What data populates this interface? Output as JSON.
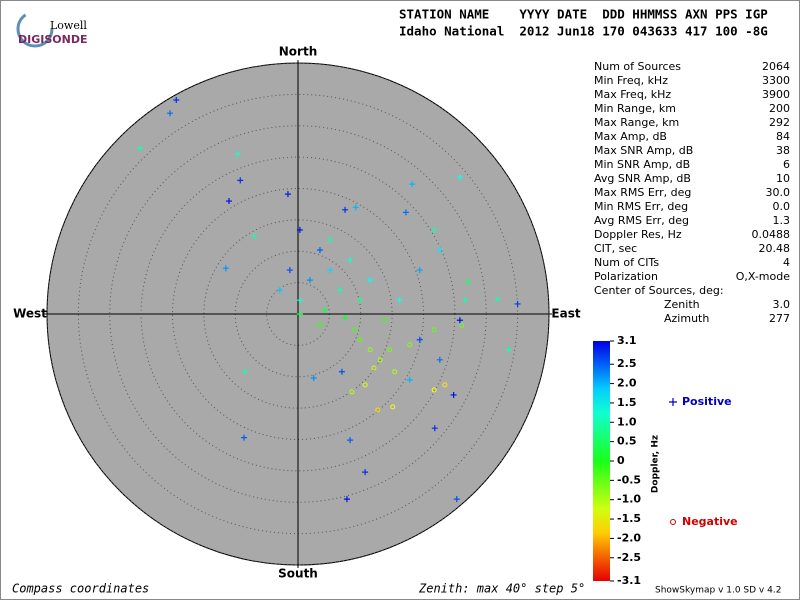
{
  "logo": {
    "top": "Lowell",
    "bottom": "DIGISONDE"
  },
  "header": {
    "line1": "STATION NAME    YYYY DATE  DDD HHMMSS AXN PPS IGP",
    "line2": "Idaho National  2012 Jun18 170 043633 417 100 -8G"
  },
  "info": {
    "rows": [
      [
        "Num of Sources",
        "2064"
      ],
      [
        "Min Freq, kHz",
        "3300"
      ],
      [
        "Max Freq, kHz",
        "3900"
      ],
      [
        "Min Range, km",
        "200"
      ],
      [
        "Max Range, km",
        "292"
      ],
      [
        "Max Amp, dB",
        "84"
      ],
      [
        "Max SNR Amp, dB",
        "38"
      ],
      [
        "Min SNR Amp, dB",
        "6"
      ],
      [
        "Avg SNR Amp, dB",
        "10"
      ],
      [
        "Max RMS Err, deg",
        "30.0"
      ],
      [
        "Min RMS Err, deg",
        "0.0"
      ],
      [
        "Avg RMS Err, deg",
        "1.3"
      ],
      [
        "Doppler Res, Hz",
        "0.0488"
      ],
      [
        "CIT, sec",
        "20.48"
      ],
      [
        "Num of CITs",
        "4"
      ],
      [
        "Polarization",
        "O,X-mode"
      ]
    ],
    "center_title": "Center of Sources, deg:",
    "center_rows": [
      [
        "Zenith",
        "3.0"
      ],
      [
        "Azimuth",
        "277"
      ]
    ]
  },
  "footer": {
    "left": "Compass coordinates",
    "middle": "Zenith: max 40°  step 5°",
    "right": "ShowSkymap v 1.0  SD v 4.2"
  },
  "chart_data": {
    "type": "skymap",
    "directions": {
      "north": "North",
      "south": "South",
      "east": "East",
      "west": "West"
    },
    "rlim": [
      0,
      40
    ],
    "rticks": [
      5,
      10,
      15,
      20,
      25,
      30,
      35,
      40
    ],
    "colorbar_label": "Doppler, Hz",
    "clim": [
      -3.1,
      3.1
    ],
    "cticks": [
      3.1,
      2.5,
      {
        "value": 2,
        "label": "2.0"
      },
      1.5,
      {
        "value": 1,
        "label": "1.0"
      },
      0.5,
      0,
      -0.5,
      {
        "value": -1,
        "label": "-1.0"
      },
      -1.5,
      {
        "value": -2,
        "label": "-2.0"
      },
      -2.5,
      -3.1
    ],
    "series": [
      {
        "name": "Positive",
        "marker": "+",
        "color": "#0000c0",
        "x": [
          -19.4,
          -20.4,
          -25.2,
          -9.6,
          -9.2,
          -11.0,
          -1.6,
          18.2,
          25.8,
          17.2,
          7.5,
          9.2,
          -7.0,
          -11.5,
          0.3,
          3.5,
          5.1,
          8.3,
          11.5,
          1.9,
          -1.3,
          -2.9,
          6.7,
          9.9,
          16.2,
          19.4,
          22.6,
          26.6,
          31.8,
          35.0,
          25.8,
          19.4,
          22.6,
          17.8,
          -8.4,
          -8.6,
          8.3,
          10.7,
          7.8,
          25.3,
          21.8,
          24.8,
          7.0,
          2.5,
          33.6,
          0.3,
          21.7,
          27.1,
          5.1,
          0.3,
          4.3,
          7.5
        ],
        "y": [
          34.1,
          32.0,
          26.4,
          25.5,
          21.3,
          18.0,
          19.1,
          20.7,
          21.8,
          16.2,
          16.6,
          17.0,
          12.4,
          7.3,
          13.4,
          10.2,
          7.0,
          8.6,
          5.4,
          5.4,
          7.0,
          3.8,
          3.8,
          2.2,
          2.2,
          7.0,
          10.2,
          2.2,
          2.4,
          1.6,
          -1.0,
          -4.1,
          -7.3,
          -10.5,
          -9.2,
          -19.7,
          -20.1,
          -25.2,
          -29.5,
          -29.5,
          -18.2,
          -12.9,
          -9.2,
          -10.2,
          -5.7,
          0,
          13.4,
          5.1,
          11.8,
          2.2,
          0.6,
          -0.6
        ],
        "values": [
          2.8,
          2.4,
          1.0,
          1.2,
          2.8,
          3.0,
          2.9,
          2.0,
          1.5,
          2.4,
          2.8,
          2.0,
          1.0,
          2.2,
          3.0,
          2.5,
          1.8,
          1.2,
          1.6,
          2.2,
          2.6,
          1.9,
          1.0,
          0.8,
          1.4,
          2.1,
          1.7,
          1.0,
          1.1,
          2.7,
          3.0,
          2.6,
          2.4,
          2.0,
          1.0,
          2.5,
          2.5,
          2.8,
          3.0,
          2.6,
          2.8,
          3.0,
          2.6,
          2.2,
          1.0,
          0.2,
          1.0,
          0.6,
          0.9,
          1.3,
          0.3,
          0.1
        ]
      },
      {
        "name": "Negative",
        "marker": "o",
        "color": "#d00000",
        "x": [
          13.1,
          11.5,
          14.6,
          12.1,
          15.4,
          9.9,
          17.8,
          21.7,
          12.7,
          15.1,
          23.4,
          3.5,
          21.7,
          26.1,
          9.1,
          13.9,
          10.7,
          8.6
        ],
        "y": [
          -7.3,
          -5.7,
          -5.7,
          -8.6,
          -9.2,
          -4.1,
          -4.9,
          -12.1,
          -15.3,
          -14.8,
          -11.3,
          -1.8,
          -2.5,
          -1.8,
          -2.5,
          -1.0,
          -11.3,
          -12.4
        ],
        "values": [
          -1.0,
          -0.8,
          -0.6,
          -1.2,
          -1.0,
          -0.4,
          -0.7,
          -1.5,
          -1.8,
          -1.6,
          -1.7,
          -0.2,
          -0.5,
          -0.6,
          -0.3,
          -0.2,
          -1.3,
          -1.1
        ]
      }
    ]
  }
}
